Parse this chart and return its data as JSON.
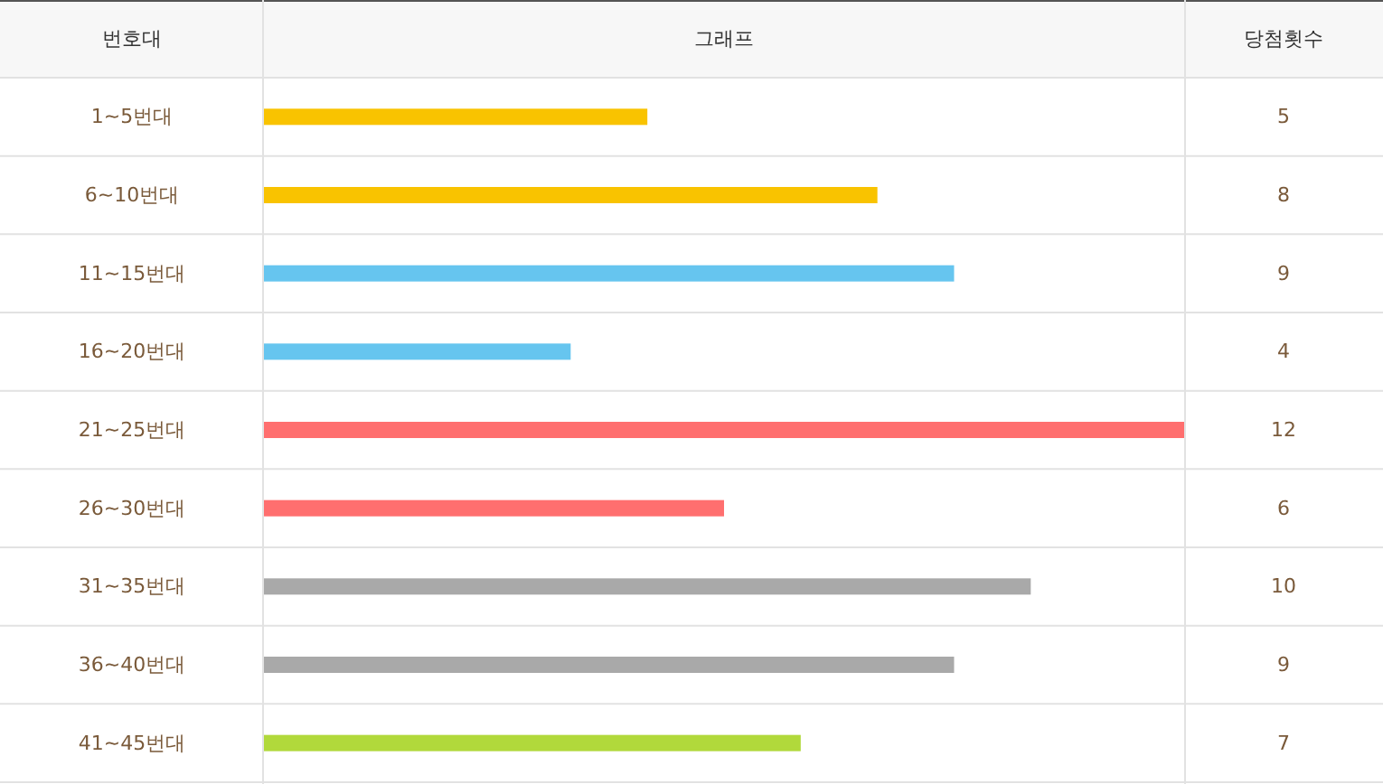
{
  "chart_data": {
    "type": "bar",
    "orientation": "horizontal",
    "title": "그래프",
    "ylabel": "번호대",
    "annotations": [
      "당첨횟수"
    ],
    "data_labels": true,
    "categories": [
      "1~5번대",
      "6~10번대",
      "11~15번대",
      "16~20번대",
      "21~25번대",
      "26~30번대",
      "31~35번대",
      "36~40번대",
      "41~45번대"
    ],
    "values": [
      5,
      8,
      9,
      4,
      12,
      6,
      10,
      9,
      7
    ],
    "colors": [
      "#f9c300",
      "#f9c300",
      "#66c5ef",
      "#66c5ef",
      "#ff6f6f",
      "#ff6f6f",
      "#a9a9a9",
      "#a9a9a9",
      "#b1d93b"
    ]
  }
}
